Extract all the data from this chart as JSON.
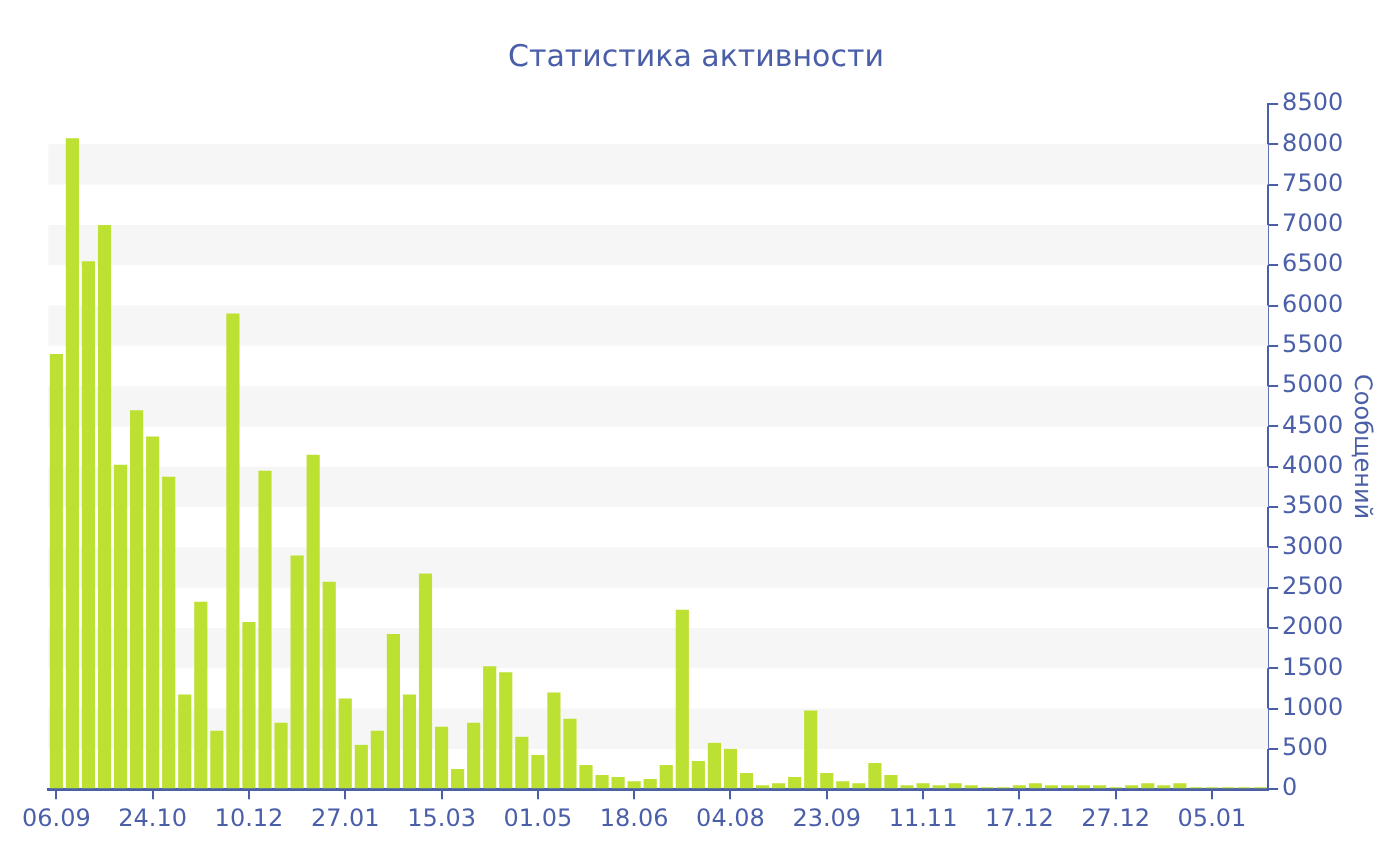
{
  "chart_data": {
    "type": "bar",
    "title": "Статистика активности",
    "ylabel": "Сообщений",
    "categories": [
      "06.09",
      null,
      null,
      null,
      null,
      null,
      "24.10",
      null,
      null,
      null,
      null,
      null,
      "10.12",
      null,
      null,
      null,
      null,
      null,
      "27.01",
      null,
      null,
      null,
      null,
      null,
      "15.03",
      null,
      null,
      null,
      null,
      null,
      "01.05",
      null,
      null,
      null,
      null,
      null,
      "18.06",
      null,
      null,
      null,
      null,
      null,
      "04.08",
      null,
      null,
      null,
      null,
      null,
      "23.09",
      null,
      null,
      null,
      null,
      null,
      "11.11",
      null,
      null,
      null,
      null,
      null,
      "17.12",
      null,
      null,
      null,
      null,
      null,
      "27.12",
      null,
      null,
      null,
      null,
      null,
      "05.01",
      null,
      null,
      null
    ],
    "values": [
      5400,
      8075,
      6550,
      7000,
      4025,
      4700,
      4375,
      3875,
      1175,
      2325,
      725,
      5900,
      2075,
      3950,
      825,
      2900,
      4150,
      2575,
      1125,
      550,
      725,
      1925,
      1175,
      2675,
      775,
      250,
      825,
      1525,
      1450,
      650,
      425,
      1200,
      875,
      300,
      175,
      150,
      100,
      125,
      300,
      2225,
      350,
      575,
      500,
      200,
      50,
      75,
      150,
      975,
      200,
      100,
      75,
      325,
      175,
      50,
      75,
      50,
      75,
      50,
      25,
      25,
      50,
      75,
      50,
      50,
      50,
      50,
      25,
      50,
      75,
      50,
      75,
      25,
      25,
      25,
      25,
      25
    ],
    "color": "#bde132",
    "ylim": [
      0,
      8500
    ],
    "yticks": [
      0,
      500,
      1000,
      1500,
      2000,
      2500,
      3000,
      3500,
      4000,
      4500,
      5000,
      5500,
      6000,
      6500,
      7000,
      7500,
      8000,
      8500
    ],
    "bands": [
      {
        "axis": "y",
        "from": 500,
        "to": 1000,
        "color": "#f6f6f6"
      },
      {
        "axis": "y",
        "from": 1500,
        "to": 2000,
        "color": "#f6f6f6"
      },
      {
        "axis": "y",
        "from": 2500,
        "to": 3000,
        "color": "#f6f6f6"
      },
      {
        "axis": "y",
        "from": 3500,
        "to": 4000,
        "color": "#f6f6f6"
      },
      {
        "axis": "y",
        "from": 4500,
        "to": 5000,
        "color": "#f6f6f6"
      },
      {
        "axis": "y",
        "from": 5500,
        "to": 6000,
        "color": "#f6f6f6"
      },
      {
        "axis": "y",
        "from": 6500,
        "to": 7000,
        "color": "#f6f6f6"
      },
      {
        "axis": "y",
        "from": 7500,
        "to": 8000,
        "color": "#f6f6f6"
      }
    ]
  }
}
